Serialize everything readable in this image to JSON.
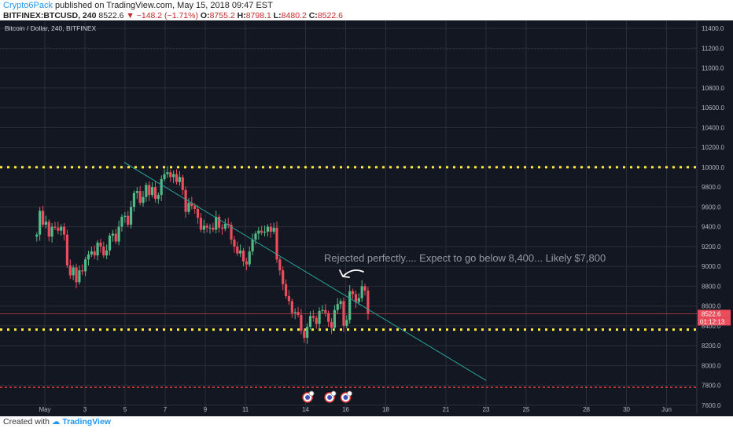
{
  "header": {
    "author": "Crypto6Pack",
    "published": "published on TradingView.com, May 15, 2018 09:47 EST",
    "symbol": "BITFINEX:BTCUSD, 240",
    "last": "8522.6",
    "change": "−148.2 (−1.71%)",
    "open_label": "O:",
    "open": "8755.2",
    "high_label": "H:",
    "high": "8798.1",
    "low_label": "L:",
    "low": "8480.2",
    "close_label": "C:",
    "close": "8522.6"
  },
  "footer": {
    "created_with": "Created with",
    "brand": "TradingView"
  },
  "colors": {
    "background": "#131722",
    "grid": "#2a2e39",
    "up": "#53b987",
    "down": "#eb4d5c",
    "support": "#ffeb3b",
    "red_level": "#e53935",
    "trendline": "#26a69a",
    "annotation": "#9598a1"
  },
  "chart_data": {
    "type": "candlestick",
    "title": "Bitcoin / Dollar, 240, BITFINEX",
    "x_tick_labels": [
      "May",
      "3",
      "5",
      "7",
      "9",
      "11",
      "14",
      "16",
      "18",
      "21",
      "23",
      "25",
      "28",
      "30",
      "Jun"
    ],
    "x_tick_days": [
      1,
      3,
      5,
      7,
      9,
      11,
      14,
      16,
      18,
      21,
      23,
      25,
      28,
      30,
      32
    ],
    "xlim": [
      30.7,
      33.3
    ],
    "y_tick_labels": [
      "7600.0",
      "7800.0",
      "8000.0",
      "8200.0",
      "8400.0",
      "8600.0",
      "8800.0",
      "9000.0",
      "9200.0",
      "9400.0",
      "9600.0",
      "9800.0",
      "10000.0",
      "10200.0",
      "10400.0",
      "10600.0",
      "10800.0",
      "11000.0",
      "11200.0",
      "11400.0"
    ],
    "ylim": [
      7520,
      11480
    ],
    "grid": true,
    "price_label": "8522.6",
    "countdown_label": "01:12:13",
    "annotation": "Rejected perfectly.... Expect to go below 8,400... Likely $7,800",
    "horizontal_lines": [
      {
        "price": 10000,
        "style": "dotted",
        "color": "support"
      },
      {
        "price": 8362,
        "style": "dotted",
        "color": "support"
      },
      {
        "price": 7780,
        "style": "dashed",
        "color": "red_level"
      },
      {
        "price": 11185,
        "style": "dotted",
        "color": "grid"
      }
    ],
    "trendline": {
      "start": {
        "day": 4.95,
        "price": 10050
      },
      "end": {
        "day": 23.0,
        "price": 7850
      }
    },
    "event_markers": [
      14.1,
      15.2,
      16.0
    ],
    "closes": [
      9320,
      9560,
      9420,
      9450,
      9300,
      9400,
      9390,
      9360,
      9400,
      9320,
      9010,
      8910,
      8990,
      8840,
      8960,
      8950,
      9070,
      9120,
      9150,
      9110,
      9240,
      9200,
      9110,
      9160,
      9310,
      9330,
      9250,
      9400,
      9500,
      9510,
      9420,
      9600,
      9740,
      9760,
      9640,
      9700,
      9820,
      9720,
      9800,
      9680,
      9720,
      9880,
      9930,
      9950,
      9900,
      9930,
      9850,
      9900,
      9770,
      9550,
      9640,
      9610,
      9580,
      9490,
      9370,
      9410,
      9390,
      9390,
      9370,
      9500,
      9390,
      9380,
      9430,
      9420,
      9270,
      9200,
      9130,
      9160,
      9050,
      9020,
      9150,
      9270,
      9330,
      9360,
      9340,
      9350,
      9400,
      9350,
      9390,
      9070,
      8960,
      8820,
      8700,
      8650,
      8530,
      8540,
      8510,
      8350,
      8280,
      8390,
      8500,
      8480,
      8420,
      8550,
      8560,
      8530,
      8440,
      8380,
      8560,
      8620,
      8650,
      8400,
      8460,
      8750,
      8720,
      8640,
      8680,
      8800,
      8755,
      8523
    ]
  }
}
